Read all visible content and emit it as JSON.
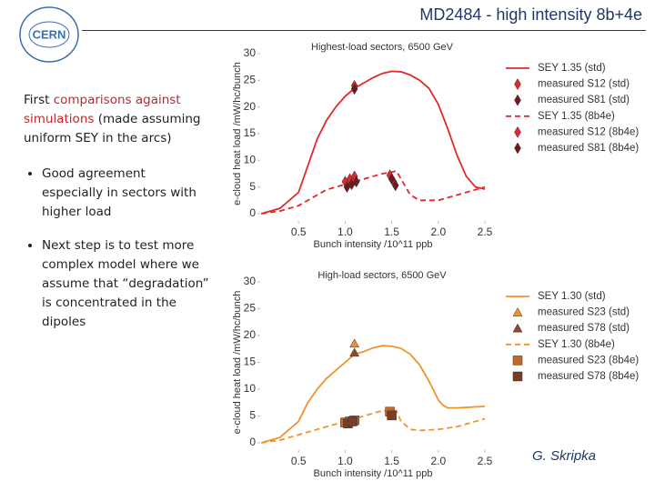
{
  "slide": {
    "title": "MD2484 - high intensity 8b+4e",
    "logo": "CERN",
    "intro": [
      "First ",
      "comparisons against simulations",
      " (made assuming uniform SEY  in the arcs)"
    ],
    "bullets": [
      "Good agreement especially in sectors with higher load",
      "Next step is to test more complex model where we assume that “degradation” is concentrated in the dipoles"
    ],
    "author": "G. Skripka"
  },
  "chart_data": [
    {
      "type": "line",
      "title": "Highest-load sectors, 6500 GeV",
      "x_label": "Bunch intensity /10^11 ppb",
      "y_label": "e-cloud heat load /mW/hc/bunch",
      "xlim": [
        0,
        2.5
      ],
      "ylim": [
        0,
        30
      ],
      "xticks": [
        0.5,
        {
          "value": 1,
          "label": "1.0"
        },
        1.5,
        {
          "value": 2,
          "label": "2.0"
        },
        2.5
      ],
      "yticks": [
        0,
        5,
        10,
        15,
        20,
        25,
        30
      ],
      "series": [
        {
          "name": "SEY 1.35 (std)",
          "kind": "line",
          "dash": false,
          "color": "#e0282e",
          "x": [
            0.1,
            0.3,
            0.5,
            0.6,
            0.7,
            0.8,
            0.9,
            1.0,
            1.1,
            1.2,
            1.3,
            1.4,
            1.5,
            1.6,
            1.7,
            1.8,
            1.9,
            2.0,
            2.1,
            2.2,
            2.3,
            2.4,
            2.5
          ],
          "values": [
            0,
            1,
            4,
            9,
            14,
            17.5,
            20,
            22,
            23.5,
            24.5,
            25.5,
            26.3,
            26.7,
            26.6,
            26,
            25,
            23.5,
            20.5,
            16,
            11,
            7,
            5,
            4.6
          ]
        },
        {
          "name": "measured S12 (std)",
          "kind": "scatter",
          "marker": "diamond",
          "color": "#e0282e",
          "x": [
            1.1
          ],
          "values": [
            24
          ]
        },
        {
          "name": "measured S81 (std)",
          "kind": "scatter",
          "marker": "diamond",
          "color": "#6e1a1e",
          "x": [
            1.1
          ],
          "values": [
            23.4
          ]
        },
        {
          "name": "SEY 1.35 (8b4e)",
          "kind": "line",
          "dash": true,
          "color": "#e0282e",
          "x": [
            0.1,
            0.3,
            0.5,
            0.6,
            0.7,
            0.8,
            0.9,
            1.0,
            1.1,
            1.2,
            1.3,
            1.4,
            1.5,
            1.55,
            1.6,
            1.7,
            1.8,
            2.0,
            2.2,
            2.4,
            2.5
          ],
          "values": [
            0,
            0.5,
            1.5,
            2.5,
            3.5,
            4.5,
            5,
            5.5,
            6,
            6.5,
            7,
            7.5,
            7.8,
            8,
            6.5,
            3.5,
            2.5,
            2.5,
            3.5,
            4.5,
            5
          ]
        },
        {
          "name": "measured S12 (8b4e)",
          "kind": "scatter",
          "marker": "diamond",
          "color": "#e0282e",
          "x": [
            1.0,
            1.05,
            1.1,
            1.48,
            1.52
          ],
          "values": [
            6,
            6.5,
            7,
            7.2,
            6
          ]
        },
        {
          "name": "measured S81 (8b4e)",
          "kind": "scatter",
          "marker": "diamond",
          "color": "#6e1a1e",
          "x": [
            1.02,
            1.07,
            1.12,
            1.5,
            1.54
          ],
          "values": [
            5,
            5.5,
            6,
            6.5,
            5.3
          ]
        }
      ]
    },
    {
      "type": "line",
      "title": "High-load sectors, 6500 GeV",
      "x_label": "Bunch intensity /10^11 ppb",
      "y_label": "e-cloud heat load /mW/hc/bunch",
      "xlim": [
        0,
        2.5
      ],
      "ylim": [
        0,
        30
      ],
      "xticks": [
        0.5,
        {
          "value": 1,
          "label": "1.0"
        },
        1.5,
        {
          "value": 2,
          "label": "2.0"
        },
        2.5
      ],
      "yticks": [
        0,
        5,
        10,
        15,
        20,
        25,
        30
      ],
      "series": [
        {
          "name": "SEY 1.30 (std)",
          "kind": "line",
          "dash": false,
          "color": "#f0922b",
          "x": [
            0.1,
            0.3,
            0.5,
            0.6,
            0.7,
            0.8,
            0.9,
            1.0,
            1.1,
            1.2,
            1.3,
            1.4,
            1.5,
            1.6,
            1.7,
            1.8,
            1.9,
            2.0,
            2.05,
            2.1,
            2.2,
            2.3,
            2.5
          ],
          "values": [
            0,
            1,
            4,
            7.5,
            10,
            12,
            13.5,
            15,
            16.5,
            17,
            17.7,
            18.1,
            18,
            17.6,
            16.5,
            14.5,
            11.5,
            8,
            7,
            6.5,
            6.5,
            6.6,
            6.8
          ]
        },
        {
          "name": "measured S23 (std)",
          "kind": "scatter",
          "marker": "triangle",
          "color": "#f0922b",
          "x": [
            1.1
          ],
          "values": [
            18.5
          ]
        },
        {
          "name": "measured S78 (std)",
          "kind": "scatter",
          "marker": "triangle",
          "color": "#8b4a2b",
          "x": [
            1.1
          ],
          "values": [
            16.8
          ]
        },
        {
          "name": "SEY 1.30 (8b4e)",
          "kind": "line",
          "dash": true,
          "color": "#f0922b",
          "x": [
            0.1,
            0.3,
            0.5,
            0.7,
            0.9,
            1.0,
            1.1,
            1.2,
            1.3,
            1.4,
            1.5,
            1.55,
            1.6,
            1.7,
            1.8,
            2.0,
            2.2,
            2.5
          ],
          "values": [
            0,
            0.5,
            1.5,
            2.5,
            3.5,
            4,
            4.5,
            5,
            5.5,
            6,
            6,
            6,
            4,
            2.5,
            2.3,
            2.5,
            3,
            4.5
          ]
        },
        {
          "name": "measured S23 (8b4e)",
          "kind": "scatter",
          "marker": "square",
          "color": "#c0682e",
          "x": [
            1.0,
            1.05,
            1.1,
            1.48
          ],
          "values": [
            3.8,
            4,
            4.2,
            5.8
          ]
        },
        {
          "name": "measured S78 (8b4e)",
          "kind": "scatter",
          "marker": "square",
          "color": "#7a3e26",
          "x": [
            1.03,
            1.08,
            1.5
          ],
          "values": [
            3.6,
            4,
            5.1
          ]
        }
      ]
    }
  ]
}
